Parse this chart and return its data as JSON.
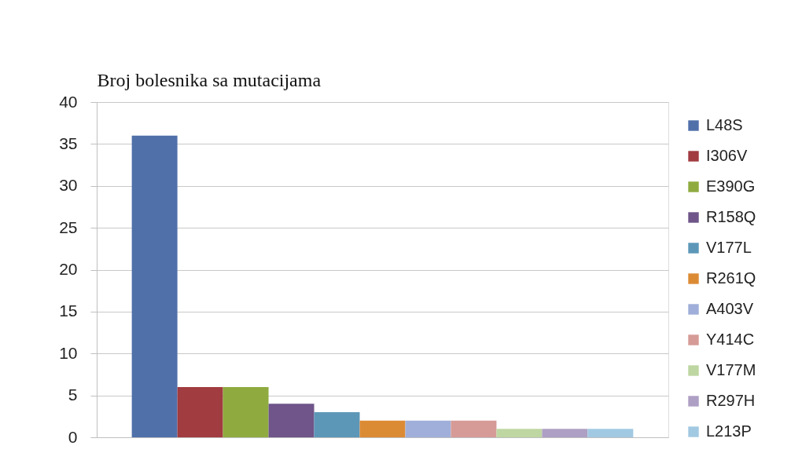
{
  "chart_data": {
    "type": "bar",
    "ylabel": "Broj bolesnika sa mutacijama",
    "categories": [
      null
    ],
    "series": [
      {
        "name": "L48S",
        "color": "#5070aa",
        "values": [
          36
        ]
      },
      {
        "name": "I306V",
        "color": "#a13c40",
        "values": [
          6
        ]
      },
      {
        "name": "E390G",
        "color": "#8fab40",
        "values": [
          6
        ]
      },
      {
        "name": "R158Q",
        "color": "#6f5589",
        "values": [
          4
        ]
      },
      {
        "name": "V177L",
        "color": "#5c97b8",
        "values": [
          3
        ]
      },
      {
        "name": "R261Q",
        "color": "#dc8b35",
        "values": [
          2
        ]
      },
      {
        "name": "A403V",
        "color": "#a0afd9",
        "values": [
          2
        ]
      },
      {
        "name": "Y414C",
        "color": "#d69b97",
        "values": [
          2
        ]
      },
      {
        "name": "V177M",
        "color": "#bed6a1",
        "values": [
          1
        ]
      },
      {
        "name": "R297H",
        "color": "#ae9fc4",
        "values": [
          1
        ]
      },
      {
        "name": "L213P",
        "color": "#a2c9e2",
        "values": [
          1
        ]
      }
    ],
    "ylim": [
      0,
      40
    ],
    "yticks": [
      0,
      5,
      10,
      15,
      20,
      25,
      30,
      35,
      40
    ],
    "grid": "y",
    "legend": "right"
  }
}
